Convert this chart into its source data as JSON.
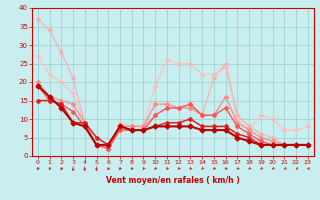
{
  "xlabel": "Vent moyen/en rafales ( km/h )",
  "xlim": [
    -0.5,
    23.5
  ],
  "ylim": [
    0,
    40
  ],
  "yticks": [
    0,
    5,
    10,
    15,
    20,
    25,
    30,
    35,
    40
  ],
  "xticks": [
    0,
    1,
    2,
    3,
    4,
    5,
    6,
    7,
    8,
    9,
    10,
    11,
    12,
    13,
    14,
    15,
    16,
    17,
    18,
    19,
    20,
    21,
    22,
    23
  ],
  "bg_color": "#c8eef0",
  "grid_color": "#99cccc",
  "lines": [
    {
      "x": [
        0,
        1,
        2,
        3,
        4,
        5,
        6,
        7,
        8,
        9,
        10,
        11,
        12,
        13,
        14,
        15,
        16,
        17,
        18,
        19,
        20,
        21,
        22,
        23
      ],
      "y": [
        37,
        34,
        28,
        21,
        9,
        3,
        3,
        8,
        8,
        8,
        11,
        13,
        13,
        14,
        11,
        21,
        25,
        11,
        8,
        6,
        5,
        3,
        3,
        3
      ],
      "color": "#ffaaaa",
      "lw": 0.8,
      "marker": "D",
      "ms": 1.8,
      "zorder": 2
    },
    {
      "x": [
        0,
        1,
        2,
        3,
        4,
        5,
        6,
        7,
        8,
        9,
        10,
        11,
        12,
        13,
        14,
        15,
        16,
        17,
        18,
        19,
        20,
        21,
        22,
        23
      ],
      "y": [
        27,
        22,
        20,
        17,
        9,
        3,
        2,
        9,
        8,
        8,
        19,
        26,
        25,
        25,
        22,
        22,
        24,
        10,
        7,
        11,
        10,
        7,
        7,
        8
      ],
      "color": "#ffbbbb",
      "lw": 0.8,
      "marker": "D",
      "ms": 1.8,
      "zorder": 2
    },
    {
      "x": [
        0,
        1,
        2,
        3,
        4,
        5,
        6,
        7,
        8,
        9,
        10,
        11,
        12,
        13,
        14,
        15,
        16,
        17,
        18,
        19,
        20,
        21,
        22,
        23
      ],
      "y": [
        20,
        16,
        15,
        14,
        9,
        3,
        2,
        8,
        8,
        8,
        14,
        14,
        13,
        13,
        11,
        11,
        16,
        9,
        7,
        5,
        4,
        3,
        3,
        3
      ],
      "color": "#ff8888",
      "lw": 0.9,
      "marker": "D",
      "ms": 2.0,
      "zorder": 3
    },
    {
      "x": [
        0,
        1,
        2,
        3,
        4,
        5,
        6,
        7,
        8,
        9,
        10,
        11,
        12,
        13,
        14,
        15,
        16,
        17,
        18,
        19,
        20,
        21,
        22,
        23
      ],
      "y": [
        19,
        15,
        14,
        12,
        8,
        3,
        2,
        7,
        7,
        7,
        11,
        13,
        13,
        14,
        11,
        11,
        13,
        8,
        6,
        4,
        3,
        3,
        3,
        3
      ],
      "color": "#ff5555",
      "lw": 1.0,
      "marker": "D",
      "ms": 2.0,
      "zorder": 3
    },
    {
      "x": [
        0,
        1,
        2,
        3,
        4,
        5,
        6,
        7,
        8,
        9,
        10,
        11,
        12,
        13,
        14,
        15,
        16,
        17,
        18,
        19,
        20,
        21,
        22,
        23
      ],
      "y": [
        15,
        15,
        14,
        9,
        9,
        5,
        3,
        8,
        7,
        7,
        8,
        9,
        9,
        10,
        8,
        8,
        8,
        6,
        5,
        3,
        3,
        3,
        3,
        3
      ],
      "color": "#dd2222",
      "lw": 1.1,
      "marker": "D",
      "ms": 2.0,
      "zorder": 3
    },
    {
      "x": [
        0,
        1,
        2,
        3,
        4,
        5,
        6,
        7,
        8,
        9,
        10,
        11,
        12,
        13,
        14,
        15,
        16,
        17,
        18,
        19,
        20,
        21,
        22,
        23
      ],
      "y": [
        19,
        16,
        13,
        9,
        8,
        3,
        3,
        8,
        7,
        7,
        8,
        8,
        8,
        8,
        7,
        7,
        7,
        5,
        4,
        3,
        3,
        3,
        3,
        3
      ],
      "color": "#bb0000",
      "lw": 1.5,
      "marker": "D",
      "ms": 2.5,
      "zorder": 4
    }
  ],
  "arrow_color": "#cc0000",
  "tick_color": "#cc0000",
  "xlabel_color": "#cc0000",
  "spine_color": "#cc0000"
}
